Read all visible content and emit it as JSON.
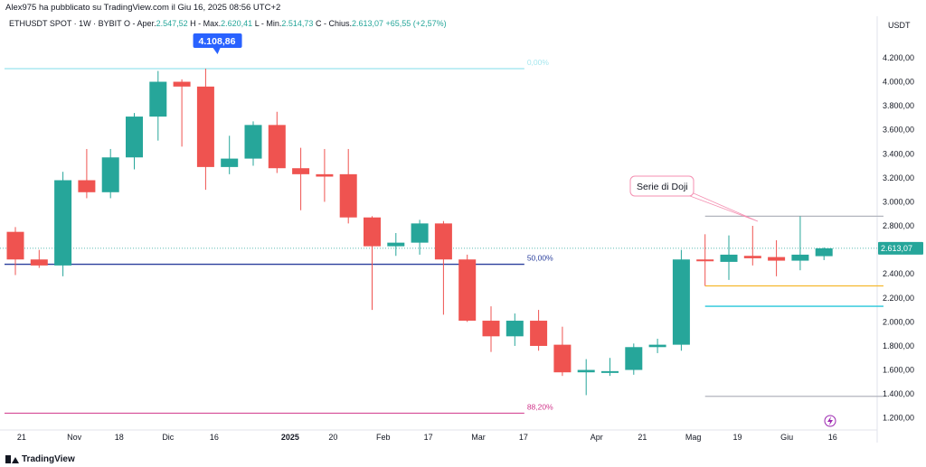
{
  "header": {
    "published_by": "Alex975 ha pubblicato su TradingView.com il Giu 16, 2025 08:56 UTC+2"
  },
  "legend": {
    "symbol": "ETHUSDT SPOT · 1W · BYBIT",
    "open_label": "O - Aper.",
    "open_value": "2.547,52",
    "high_label": "H - Max.",
    "high_value": "2.620,41",
    "low_label": "L - Min.",
    "low_value": "2.514,73",
    "close_label": "C - Chius.",
    "close_value": "2.613,07",
    "change_value": "+65,55 (+2,57%)"
  },
  "footer": {
    "brand": "TradingView"
  },
  "colors": {
    "up": "#26a69a",
    "down": "#ef5350",
    "axis_text": "#131722",
    "accent": "#2962ff"
  },
  "chart_data": {
    "type": "candlestick",
    "currency": "USDT",
    "y_ticks": [
      1200,
      1400,
      1600,
      1800,
      2000,
      2200,
      2400,
      2600,
      2800,
      3000,
      3200,
      3400,
      3600,
      3800,
      4000,
      4200
    ],
    "y_tick_labels": [
      "1.200,00",
      "1.400,00",
      "1.600,00",
      "1.800,00",
      "2.000,00",
      "2.200,00",
      "2.400,00",
      "2.600,00",
      "2.800,00",
      "3.000,00",
      "3.200,00",
      "3.400,00",
      "3.600,00",
      "3.800,00",
      "4.000,00",
      "4.200,00"
    ],
    "ylim": [
      1100,
      4380
    ],
    "x_labels": [
      {
        "i": 0.3,
        "t": "21",
        "bold": false
      },
      {
        "i": 2.4,
        "t": "Nov",
        "bold": false
      },
      {
        "i": 4.4,
        "t": "18",
        "bold": false
      },
      {
        "i": 6.4,
        "t": "Dic",
        "bold": false
      },
      {
        "i": 8.4,
        "t": "16",
        "bold": false
      },
      {
        "i": 11.4,
        "t": "2025",
        "bold": true
      },
      {
        "i": 13.4,
        "t": "20",
        "bold": false
      },
      {
        "i": 15.4,
        "t": "Feb",
        "bold": false
      },
      {
        "i": 17.4,
        "t": "17",
        "bold": false
      },
      {
        "i": 19.4,
        "t": "Mar",
        "bold": false
      },
      {
        "i": 21.4,
        "t": "17",
        "bold": false
      },
      {
        "i": 24.4,
        "t": "Apr",
        "bold": false
      },
      {
        "i": 26.4,
        "t": "21",
        "bold": false
      },
      {
        "i": 28.4,
        "t": "Mag",
        "bold": false
      },
      {
        "i": 30.4,
        "t": "19",
        "bold": false
      },
      {
        "i": 32.4,
        "t": "Giu",
        "bold": false
      },
      {
        "i": 34.4,
        "t": "16",
        "bold": false
      }
    ],
    "candles": [
      {
        "o": 2750,
        "h": 2790,
        "l": 2390,
        "c": 2520
      },
      {
        "o": 2520,
        "h": 2600,
        "l": 2450,
        "c": 2470
      },
      {
        "o": 2470,
        "h": 3250,
        "l": 2380,
        "c": 3180
      },
      {
        "o": 3180,
        "h": 3440,
        "l": 3030,
        "c": 3080
      },
      {
        "o": 3080,
        "h": 3440,
        "l": 3030,
        "c": 3370
      },
      {
        "o": 3370,
        "h": 3740,
        "l": 3270,
        "c": 3710
      },
      {
        "o": 3710,
        "h": 4090,
        "l": 3510,
        "c": 4000
      },
      {
        "o": 4000,
        "h": 4020,
        "l": 3460,
        "c": 3960
      },
      {
        "o": 3960,
        "h": 4108.86,
        "l": 3100,
        "c": 3290
      },
      {
        "o": 3290,
        "h": 3550,
        "l": 3230,
        "c": 3360
      },
      {
        "o": 3360,
        "h": 3670,
        "l": 3300,
        "c": 3640
      },
      {
        "o": 3640,
        "h": 3750,
        "l": 3240,
        "c": 3280
      },
      {
        "o": 3280,
        "h": 3450,
        "l": 2930,
        "c": 3230
      },
      {
        "o": 3230,
        "h": 3440,
        "l": 3000,
        "c": 3210
      },
      {
        "o": 3230,
        "h": 3440,
        "l": 2820,
        "c": 2870
      },
      {
        "o": 2870,
        "h": 2880,
        "l": 2100,
        "c": 2630
      },
      {
        "o": 2630,
        "h": 2740,
        "l": 2550,
        "c": 2660
      },
      {
        "o": 2660,
        "h": 2850,
        "l": 2560,
        "c": 2820
      },
      {
        "o": 2820,
        "h": 2840,
        "l": 2060,
        "c": 2520
      },
      {
        "o": 2520,
        "h": 2560,
        "l": 2000,
        "c": 2010
      },
      {
        "o": 2010,
        "h": 2130,
        "l": 1750,
        "c": 1880
      },
      {
        "o": 1880,
        "h": 2070,
        "l": 1800,
        "c": 2010
      },
      {
        "o": 2010,
        "h": 2100,
        "l": 1760,
        "c": 1800
      },
      {
        "o": 1810,
        "h": 1960,
        "l": 1550,
        "c": 1580
      },
      {
        "o": 1580,
        "h": 1690,
        "l": 1390,
        "c": 1600
      },
      {
        "o": 1590,
        "h": 1700,
        "l": 1550,
        "c": 1590
      },
      {
        "o": 1600,
        "h": 1820,
        "l": 1560,
        "c": 1790
      },
      {
        "o": 1790,
        "h": 1860,
        "l": 1740,
        "c": 1810
      },
      {
        "o": 1810,
        "h": 2600,
        "l": 1760,
        "c": 2520
      },
      {
        "o": 2520,
        "h": 2730,
        "l": 2300,
        "c": 2510
      },
      {
        "o": 2500,
        "h": 2720,
        "l": 2350,
        "c": 2560
      },
      {
        "o": 2550,
        "h": 2800,
        "l": 2470,
        "c": 2530
      },
      {
        "o": 2540,
        "h": 2680,
        "l": 2380,
        "c": 2510
      },
      {
        "o": 2510,
        "h": 2880,
        "l": 2430,
        "c": 2560
      },
      {
        "o": 2547.52,
        "h": 2620.41,
        "l": 2514.73,
        "c": 2613.07
      }
    ],
    "fib_levels": [
      {
        "price": 4108.86,
        "label": "0,00%",
        "color": "#7fdde8",
        "from": 0,
        "to": 21.4
      },
      {
        "price": 2480,
        "label": "50,00%",
        "color": "#2a3f9d",
        "from": 0,
        "to": 21.4
      },
      {
        "price": 1240,
        "label": "88,20%",
        "color": "#d0358a",
        "from": 0,
        "to": 21.4
      }
    ],
    "side_lines": [
      {
        "price": 2880,
        "color": "#b2b5be",
        "from": 29,
        "to": 36.5
      },
      {
        "price": 2300,
        "color": "#f5b82e",
        "from": 29,
        "to": 36.5
      },
      {
        "price": 2130,
        "color": "#26c6da",
        "from": 29,
        "to": 36.5
      },
      {
        "price": 1380,
        "color": "#b2b5be",
        "from": 29,
        "to": 36.5
      }
    ],
    "high_callout": {
      "label": "4.108,86",
      "index": 8.5
    },
    "annotation": {
      "text": "Serie di Doji"
    },
    "last_price": {
      "value": 2613.07,
      "label": "2.613,07"
    }
  }
}
